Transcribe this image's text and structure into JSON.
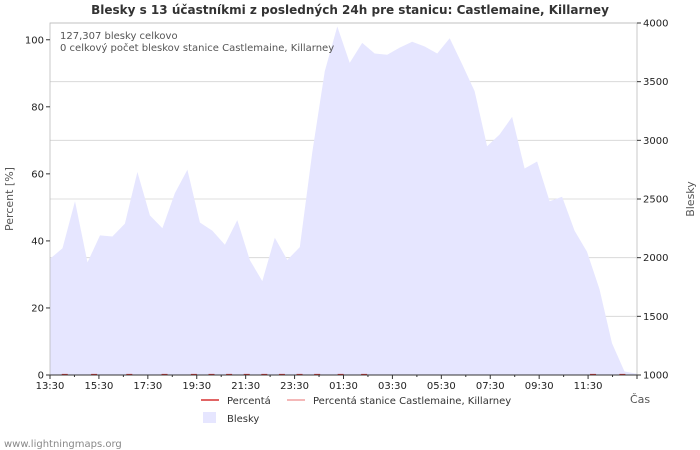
{
  "chart_data": {
    "type": "area",
    "title": "Blesky s 13 účastníkmi z posledných 24h pre stanicu: Castlemaine, Killarney",
    "xlabel": "Čas",
    "ylabel_left": "Percent   [%]",
    "ylabel_right": "Blesky",
    "y_left_range": [
      0,
      105
    ],
    "y_right_range": [
      1000,
      4000
    ],
    "y_left_ticks": [
      "0",
      "20",
      "40",
      "60",
      "80",
      "100"
    ],
    "y_right_ticks": [
      "1000",
      "1500",
      "2000",
      "2500",
      "3000",
      "3500",
      "4000"
    ],
    "x_ticks": [
      "13:30",
      "15:30",
      "17:30",
      "19:30",
      "21:30",
      "23:30",
      "01:30",
      "03:30",
      "05:30",
      "07:30",
      "09:30",
      "11:30"
    ],
    "annotations": [
      "127,307 blesky celkovo",
      "0 celkový počet bleskov stanice Castlemaine, Killarney"
    ],
    "series": [
      {
        "name": "Blesky",
        "color": "#e6e6ff",
        "axis": "right",
        "values": [
          1990,
          2080,
          2480,
          1960,
          2190,
          2180,
          2290,
          2730,
          2360,
          2250,
          2550,
          2750,
          2300,
          2230,
          2110,
          2320,
          1980,
          1800,
          2170,
          1980,
          2090,
          2900,
          3590,
          3970,
          3660,
          3830,
          3740,
          3730,
          3790,
          3840,
          3800,
          3740,
          3870,
          3650,
          3420,
          2950,
          3050,
          3200,
          2760,
          2820,
          2480,
          2520,
          2230,
          2050,
          1730,
          1270,
          1030,
          1010
        ]
      },
      {
        "name": "Percentá",
        "color": "#d73030",
        "axis": "left",
        "values": []
      },
      {
        "name": "Percentá stanice Castlemaine, Killarney",
        "color": "#f0a0a0",
        "axis": "left",
        "values": []
      }
    ],
    "legend": [
      "Percentá",
      "Percentá stanice Castlemaine, Killarney",
      "Blesky"
    ],
    "grid": true
  },
  "footer": {
    "credit": "www.lightningmaps.org"
  }
}
